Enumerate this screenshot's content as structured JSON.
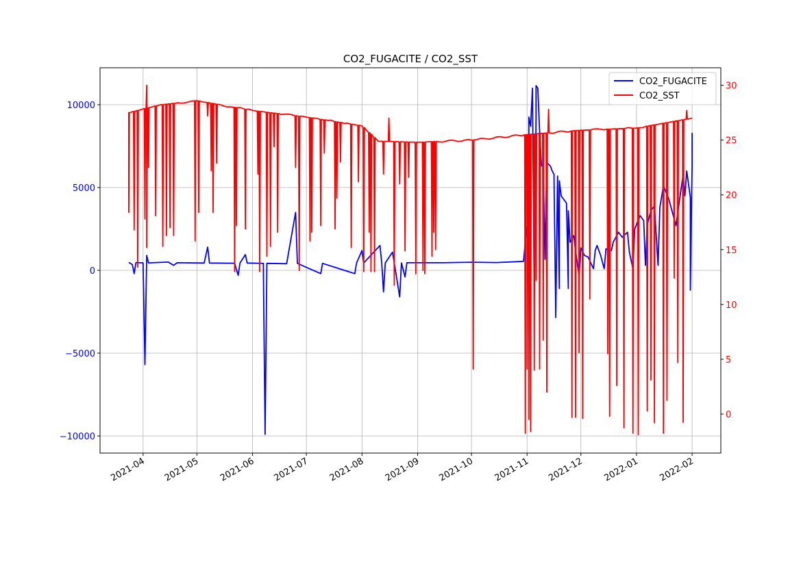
{
  "chart_data": {
    "type": "line",
    "title": "CO2_FUGACITE / CO2_SST",
    "xlabel": "",
    "ylabel_left": "",
    "ylabel_right": "",
    "xlim": [
      "2021-03-08",
      "2022-02-17"
    ],
    "ylim_left": [
      -11033,
      12231
    ],
    "ylim_right": [
      -3.56,
      31.6
    ],
    "grid": true,
    "legend_position": "top-right",
    "x_ticks": [
      "2021-04-01",
      "2021-05-01",
      "2021-06-01",
      "2021-07-01",
      "2021-08-01",
      "2021-09-01",
      "2021-10-01",
      "2021-11-01",
      "2021-12-01",
      "2022-01-01",
      "2022-02-01"
    ],
    "x_tick_labels": [
      "2021-04",
      "2021-05",
      "2021-06",
      "2021-07",
      "2021-08",
      "2021-09",
      "2021-10",
      "2021-11",
      "2021-12",
      "2022-01",
      "2022-02"
    ],
    "y_left_ticks": [
      -10000,
      -5000,
      0,
      5000,
      10000
    ],
    "y_left_tick_labels": [
      "−10000",
      "−5000",
      "0",
      "5000",
      "10000"
    ],
    "y_right_ticks": [
      0,
      5,
      10,
      15,
      20,
      25,
      30
    ],
    "y_right_tick_labels": [
      "0",
      "5",
      "10",
      "15",
      "20",
      "25",
      "30"
    ],
    "series": [
      {
        "name": "CO2_FUGACITE",
        "axis": "left",
        "color": "#0000ff",
        "points": [
          [
            "2021-03-24",
            480
          ],
          [
            "2021-03-26",
            350
          ],
          [
            "2021-03-27",
            -200
          ],
          [
            "2021-03-28",
            470
          ],
          [
            "2021-04-01",
            450
          ],
          [
            "2021-04-02",
            -5700
          ],
          [
            "2021-04-03",
            900
          ],
          [
            "2021-04-04",
            450
          ],
          [
            "2021-04-15",
            500
          ],
          [
            "2021-04-18",
            300
          ],
          [
            "2021-04-20",
            460
          ],
          [
            "2021-05-05",
            440
          ],
          [
            "2021-05-07",
            1400
          ],
          [
            "2021-05-08",
            440
          ],
          [
            "2021-05-22",
            430
          ],
          [
            "2021-05-24",
            -300
          ],
          [
            "2021-05-25",
            440
          ],
          [
            "2021-05-28",
            950
          ],
          [
            "2021-05-29",
            440
          ],
          [
            "2021-06-07",
            420
          ],
          [
            "2021-06-08",
            -9900
          ],
          [
            "2021-06-09",
            420
          ],
          [
            "2021-06-20",
            400
          ],
          [
            "2021-06-25",
            3500
          ],
          [
            "2021-06-26",
            420
          ],
          [
            "2021-07-09",
            -200
          ],
          [
            "2021-07-10",
            420
          ],
          [
            "2021-07-28",
            -200
          ],
          [
            "2021-07-29",
            450
          ],
          [
            "2021-08-01",
            1200
          ],
          [
            "2021-08-02",
            450
          ],
          [
            "2021-08-11",
            1500
          ],
          [
            "2021-08-12",
            450
          ],
          [
            "2021-08-13",
            -1300
          ],
          [
            "2021-08-14",
            450
          ],
          [
            "2021-08-18",
            1100
          ],
          [
            "2021-08-19",
            450
          ],
          [
            "2021-08-22",
            -1600
          ],
          [
            "2021-08-23",
            450
          ],
          [
            "2021-08-25",
            -400
          ],
          [
            "2021-08-26",
            460
          ],
          [
            "2021-09-15",
            460
          ],
          [
            "2021-10-01",
            490
          ],
          [
            "2021-10-15",
            470
          ],
          [
            "2021-10-30",
            540
          ],
          [
            "2021-10-31",
            1700
          ],
          [
            "2021-11-02",
            3600
          ],
          [
            "2021-11-02",
            9250
          ],
          [
            "2021-11-03",
            8700
          ],
          [
            "2021-11-04",
            11000
          ],
          [
            "2021-11-05",
            -1800
          ],
          [
            "2021-11-06",
            9200
          ],
          [
            "2021-11-06",
            11150
          ],
          [
            "2021-11-07",
            11000
          ],
          [
            "2021-11-08",
            8400
          ],
          [
            "2021-11-09",
            6300
          ],
          [
            "2021-11-10",
            6400
          ],
          [
            "2021-11-11",
            660
          ],
          [
            "2021-11-12",
            6500
          ],
          [
            "2021-11-14",
            6300
          ],
          [
            "2021-11-15",
            6000
          ],
          [
            "2021-11-16",
            5800
          ],
          [
            "2021-11-17",
            -2850
          ],
          [
            "2021-11-18",
            5700
          ],
          [
            "2021-11-19",
            -1100
          ],
          [
            "2021-11-19",
            5400
          ],
          [
            "2021-11-20",
            4500
          ],
          [
            "2021-11-23",
            4050
          ],
          [
            "2021-11-24",
            -1100
          ],
          [
            "2021-11-24",
            3600
          ],
          [
            "2021-11-25",
            1700
          ],
          [
            "2021-11-27",
            2100
          ],
          [
            "2021-11-28",
            1200
          ],
          [
            "2021-11-30",
            -300
          ],
          [
            "2021-12-01",
            1350
          ],
          [
            "2021-12-03",
            900
          ],
          [
            "2021-12-05",
            800
          ],
          [
            "2021-12-08",
            100
          ],
          [
            "2021-12-09",
            1200
          ],
          [
            "2021-12-10",
            1500
          ],
          [
            "2021-12-12",
            900
          ],
          [
            "2021-12-14",
            100
          ],
          [
            "2021-12-15",
            1300
          ],
          [
            "2021-12-18",
            1200
          ],
          [
            "2021-12-19",
            1700
          ],
          [
            "2021-12-22",
            2300
          ],
          [
            "2021-12-24",
            2000
          ],
          [
            "2021-12-27",
            2300
          ],
          [
            "2021-12-28",
            1100
          ],
          [
            "2021-12-30",
            100
          ],
          [
            "2021-12-31",
            2500
          ],
          [
            "2022-01-03",
            3300
          ],
          [
            "2022-01-05",
            3000
          ],
          [
            "2022-01-06",
            300
          ],
          [
            "2022-01-07",
            2750
          ],
          [
            "2022-01-09",
            3600
          ],
          [
            "2022-01-11",
            3900
          ],
          [
            "2022-01-13",
            300
          ],
          [
            "2022-01-14",
            3800
          ],
          [
            "2022-01-16",
            5100
          ],
          [
            "2022-01-19",
            4300
          ],
          [
            "2022-01-23",
            2700
          ],
          [
            "2022-01-27",
            5800
          ],
          [
            "2022-01-28",
            4500
          ],
          [
            "2022-01-29",
            6000
          ],
          [
            "2022-01-31",
            4400
          ],
          [
            "2022-01-31",
            -1200
          ],
          [
            "2022-02-01",
            6400
          ],
          [
            "2022-02-01",
            8300
          ]
        ]
      },
      {
        "name": "CO2_SST",
        "axis": "right",
        "color": "#ff0000",
        "baseline": [
          [
            "2021-03-24",
            27.5
          ],
          [
            "2021-04-10",
            28.2
          ],
          [
            "2021-05-01",
            28.6
          ],
          [
            "2021-06-01",
            27.7
          ],
          [
            "2021-07-01",
            27.1
          ],
          [
            "2021-08-01",
            26.3
          ],
          [
            "2021-08-10",
            24.9
          ],
          [
            "2021-09-01",
            24.8
          ],
          [
            "2021-10-01",
            25.0
          ],
          [
            "2021-11-01",
            25.5
          ],
          [
            "2021-12-01",
            25.9
          ],
          [
            "2022-01-01",
            26.1
          ],
          [
            "2022-02-01",
            27.0
          ]
        ],
        "dips": [
          [
            "2021-03-24",
            18.4
          ],
          [
            "2021-03-27",
            16.8
          ],
          [
            "2021-03-29",
            13.4
          ],
          [
            "2021-04-02",
            17.8
          ],
          [
            "2021-04-03",
            30.0
          ],
          [
            "2021-04-03",
            15.2
          ],
          [
            "2021-04-04",
            22.5
          ],
          [
            "2021-04-08",
            18.1
          ],
          [
            "2021-04-12",
            15.3
          ],
          [
            "2021-04-14",
            16.3
          ],
          [
            "2021-04-16",
            17.0
          ],
          [
            "2021-04-18",
            16.3
          ],
          [
            "2021-04-30",
            15.8
          ],
          [
            "2021-05-02",
            18.4
          ],
          [
            "2021-05-07",
            27.2
          ],
          [
            "2021-05-09",
            22.2
          ],
          [
            "2021-05-10",
            18.4
          ],
          [
            "2021-05-12",
            22.9
          ],
          [
            "2021-05-22",
            13.0
          ],
          [
            "2021-05-23",
            17.2
          ],
          [
            "2021-05-28",
            16.9
          ],
          [
            "2021-06-04",
            21.9
          ],
          [
            "2021-06-05",
            13.0
          ],
          [
            "2021-06-09",
            14.4
          ],
          [
            "2021-06-11",
            15.3
          ],
          [
            "2021-06-13",
            24.4
          ],
          [
            "2021-06-15",
            16.6
          ],
          [
            "2021-06-25",
            22.5
          ],
          [
            "2021-06-27",
            13.1
          ],
          [
            "2021-07-03",
            15.8
          ],
          [
            "2021-07-04",
            16.6
          ],
          [
            "2021-07-09",
            17.2
          ],
          [
            "2021-07-11",
            23.8
          ],
          [
            "2021-07-17",
            16.9
          ],
          [
            "2021-07-18",
            19.7
          ],
          [
            "2021-07-20",
            23.0
          ],
          [
            "2021-07-26",
            15.2
          ],
          [
            "2021-07-30",
            21.2
          ],
          [
            "2021-08-02",
            13.0
          ],
          [
            "2021-08-05",
            16.6
          ],
          [
            "2021-08-06",
            13.0
          ],
          [
            "2021-08-08",
            13.0
          ],
          [
            "2021-08-13",
            21.9
          ],
          [
            "2021-08-16",
            27.0
          ],
          [
            "2021-08-19",
            11.75
          ],
          [
            "2021-08-22",
            21.0
          ],
          [
            "2021-08-25",
            14.9
          ],
          [
            "2021-08-27",
            21.6
          ],
          [
            "2021-08-31",
            12.8
          ],
          [
            "2021-09-04",
            13.1
          ],
          [
            "2021-09-05",
            12.8
          ],
          [
            "2021-09-09",
            14.4
          ],
          [
            "2021-09-10",
            16.6
          ],
          [
            "2021-09-11",
            15.0
          ],
          [
            "2021-10-02",
            4.1
          ],
          [
            "2021-10-31",
            -1.75
          ],
          [
            "2021-11-01",
            4.1
          ],
          [
            "2021-11-02",
            -0.5
          ],
          [
            "2021-11-03",
            -1.6
          ],
          [
            "2021-11-05",
            4.0
          ],
          [
            "2021-11-06",
            12.2
          ],
          [
            "2021-11-08",
            4.1
          ],
          [
            "2021-11-10",
            6.75
          ],
          [
            "2021-11-12",
            2.0
          ],
          [
            "2021-11-13",
            27.8
          ],
          [
            "2021-11-26",
            -0.3
          ],
          [
            "2021-11-28",
            -0.3
          ],
          [
            "2021-11-30",
            5.6
          ],
          [
            "2021-12-02",
            -0.4
          ],
          [
            "2021-12-06",
            10.5
          ],
          [
            "2021-12-16",
            5.5
          ],
          [
            "2021-12-17",
            -0.2
          ],
          [
            "2021-12-21",
            2.6
          ],
          [
            "2021-12-25",
            -1.25
          ],
          [
            "2021-12-30",
            -1.75
          ],
          [
            "2022-01-02",
            -1.9
          ],
          [
            "2022-01-07",
            0.3
          ],
          [
            "2022-01-09",
            3.1
          ],
          [
            "2022-01-11",
            -0.8
          ],
          [
            "2022-01-16",
            -1.75
          ],
          [
            "2022-01-18",
            1.25
          ],
          [
            "2022-01-22",
            12.4
          ],
          [
            "2022-01-24",
            4.7
          ],
          [
            "2022-01-27",
            -0.75
          ],
          [
            "2022-01-29",
            27.7
          ]
        ]
      }
    ]
  }
}
